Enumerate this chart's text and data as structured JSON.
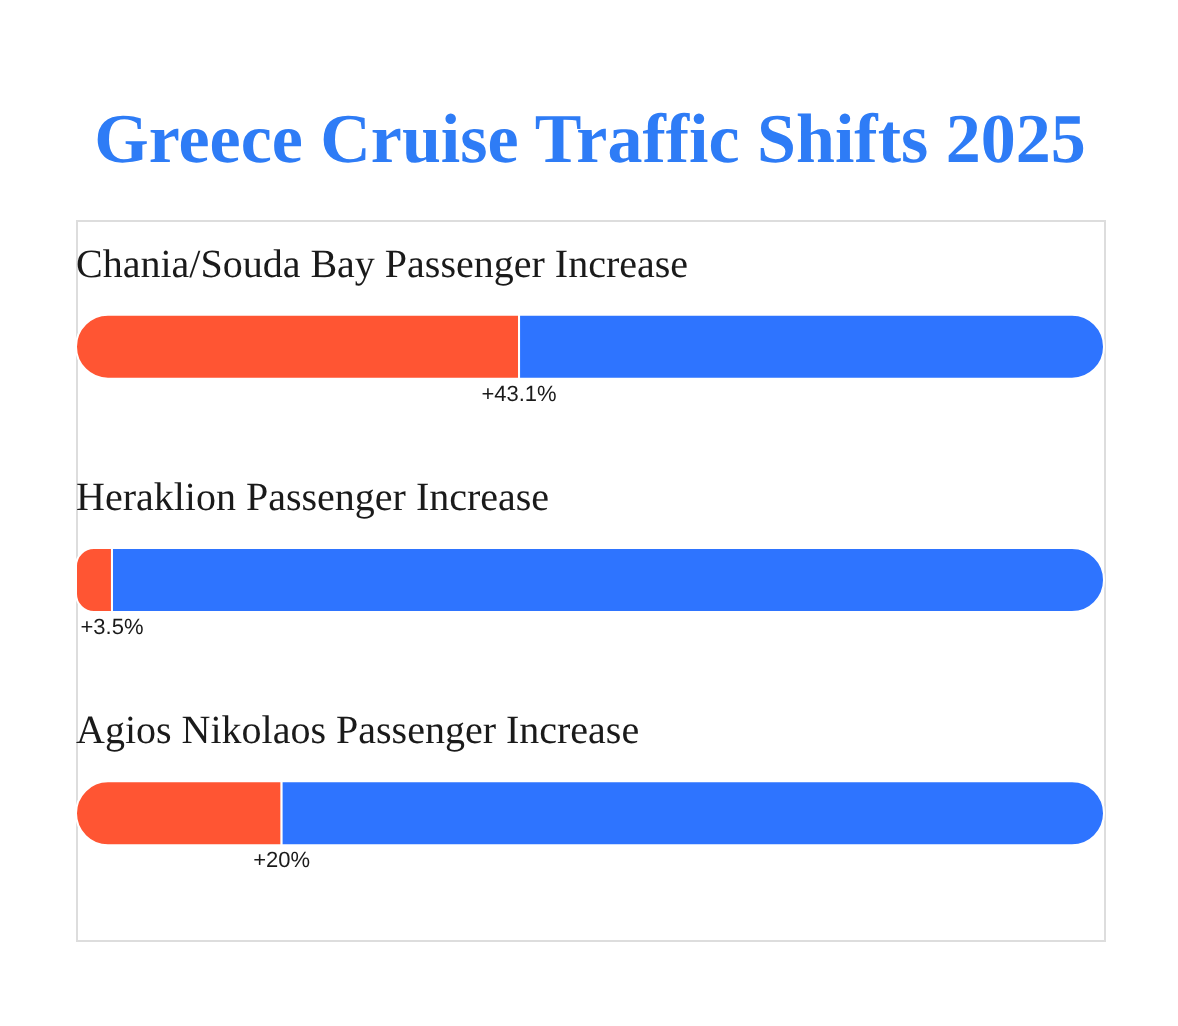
{
  "chart_data": {
    "type": "bar",
    "orientation": "horizontal",
    "stacked": true,
    "title": "Greece Cruise Traffic Shifts 2025",
    "categories": [
      "Chania/Souda Bay Passenger Increase",
      "Heraklion Passenger Increase",
      "Agios Nikolaos Passenger Increase"
    ],
    "tick_labels": "y",
    "series": [
      {
        "color": "#ff5533",
        "values": [
          43.1,
          3.5,
          20
        ],
        "value_labels": [
          "+43.1%",
          "+3.5%",
          "+20%"
        ]
      },
      {
        "color": "#2e74ff",
        "values": [
          56.9,
          96.5,
          80
        ]
      }
    ]
  }
}
